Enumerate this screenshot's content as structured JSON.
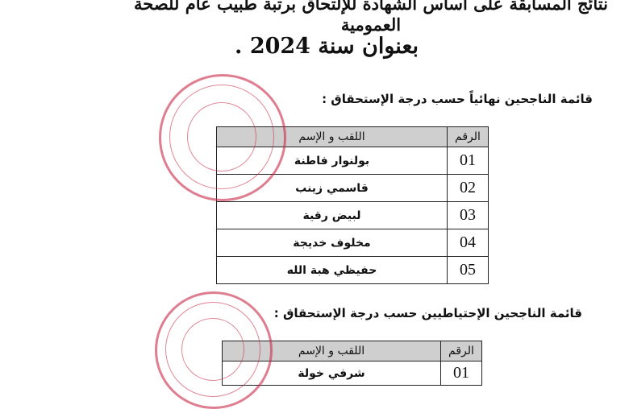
{
  "title_line1": "نتائج المسابقة على أساس الشهادة للإلتحاق برتبة طبيب عام للصحة العمومية",
  "title_line2": "بعنوان سنة 2024 .",
  "final_list": {
    "heading": "قائمة الناجحين نهائياً حسب درجة الإستحقاق :",
    "headers": {
      "number": "الرقم",
      "name": "اللقب و الإسم"
    },
    "rows": [
      {
        "number": "01",
        "name": "بولنوار فاطنة"
      },
      {
        "number": "02",
        "name": "قاسمي زينب"
      },
      {
        "number": "03",
        "name": "لبيض رقية"
      },
      {
        "number": "04",
        "name": "مخلوف خديجة"
      },
      {
        "number": "05",
        "name": "حفيظي هبة الله"
      }
    ]
  },
  "reserve_list": {
    "heading": "قائمة الناجحين الإحتياطيين حسب درجة الإستحقاق :",
    "headers": {
      "number": "الرقم",
      "name": "اللقب و الإسم"
    },
    "rows": [
      {
        "number": "01",
        "name": "شرفي خولة"
      }
    ]
  },
  "stamp_color": "#c8284a"
}
